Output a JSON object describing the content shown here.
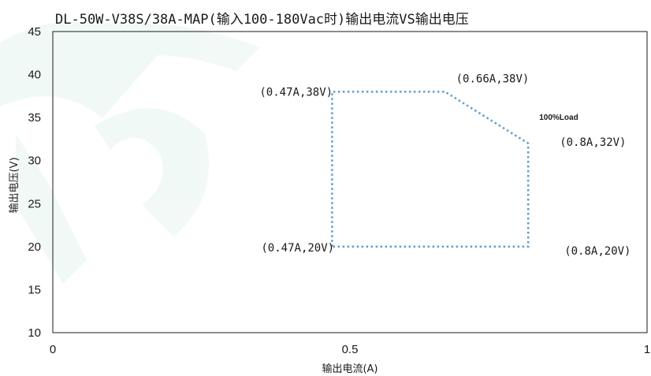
{
  "chart_data": {
    "type": "line",
    "title": "DL-50W-V38S/38A-MAP(输入100-180Vac时)输出电流VS输出电压",
    "xlabel": "输出电流(A)",
    "ylabel": "输出电压(V)",
    "xlim": [
      0,
      1
    ],
    "ylim": [
      10,
      45
    ],
    "x_ticks": [
      "0",
      "0.5",
      "1"
    ],
    "y_ticks": [
      "10",
      "15",
      "20",
      "25",
      "30",
      "35",
      "40",
      "45"
    ],
    "grid": false,
    "series": [
      {
        "color": "#5b9bd5",
        "points": [
          {
            "x": 0.47,
            "y": 20
          },
          {
            "x": 0.47,
            "y": 38
          },
          {
            "x": 0.66,
            "y": 38
          },
          {
            "x": 0.8,
            "y": 32
          },
          {
            "x": 0.8,
            "y": 20
          },
          {
            "x": 0.47,
            "y": 20
          }
        ]
      }
    ],
    "point_labels": [
      {
        "text": "(0.47A,38V)",
        "x": 0.47,
        "y": 38
      },
      {
        "text": "(0.66A,38V)",
        "x": 0.66,
        "y": 38
      },
      {
        "text": "(0.8A,32V)",
        "x": 0.8,
        "y": 32
      },
      {
        "text": "(0.47A,20V)",
        "x": 0.47,
        "y": 20
      },
      {
        "text": "(0.8A,20V)",
        "x": 0.8,
        "y": 20
      }
    ],
    "annotations": [
      {
        "text": "100%Load",
        "x": 0.74,
        "y": 35
      }
    ]
  }
}
